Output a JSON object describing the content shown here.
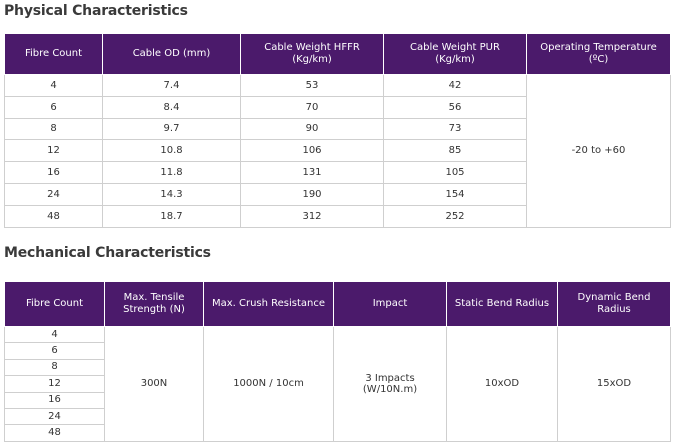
{
  "physical": {
    "title": "Physical Characteristics",
    "headers": {
      "fibre_count": "Fibre Count",
      "cable_od": "Cable OD (mm)",
      "weight_hffr_line1": "Cable Weight  HFFR",
      "weight_hffr_line2": "(Kg/km)",
      "weight_pur_line1": "Cable Weight PUR",
      "weight_pur_line2": "(Kg/km)",
      "op_temp_line1": "Operating Temperature",
      "op_temp_line2": "(ºC)"
    },
    "rows": [
      {
        "fibre": "4",
        "od": "7.4",
        "hffr": "53",
        "pur": "42"
      },
      {
        "fibre": "6",
        "od": "8.4",
        "hffr": "70",
        "pur": "56"
      },
      {
        "fibre": "8",
        "od": "9.7",
        "hffr": "90",
        "pur": "73"
      },
      {
        "fibre": "12",
        "od": "10.8",
        "hffr": "106",
        "pur": "85"
      },
      {
        "fibre": "16",
        "od": "11.8",
        "hffr": "131",
        "pur": "105"
      },
      {
        "fibre": "24",
        "od": "14.3",
        "hffr": "190",
        "pur": "154"
      },
      {
        "fibre": "48",
        "od": "18.7",
        "hffr": "312",
        "pur": "252"
      }
    ],
    "op_temp_value": "-20 to +60"
  },
  "mechanical": {
    "title": "Mechanical Characteristics",
    "headers": {
      "fibre_count": "Fibre Count",
      "tensile_line1": "Max. Tensile",
      "tensile_line2": "Strength (N)",
      "crush": "Max. Crush Resistance",
      "impact": "Impact",
      "static_bend": "Static Bend Radius",
      "dynamic_bend_line1": "Dynamic Bend",
      "dynamic_bend_line2": "Radius"
    },
    "fibre_counts": [
      "4",
      "6",
      "8",
      "12",
      "16",
      "24",
      "48"
    ],
    "tensile_value": "300N",
    "crush_value": "1000N / 10cm",
    "impact_line1": "3 Impacts",
    "impact_line2": "(W/10N.m)",
    "static_bend_value": "10xOD",
    "dynamic_bend_value": "15xOD"
  }
}
